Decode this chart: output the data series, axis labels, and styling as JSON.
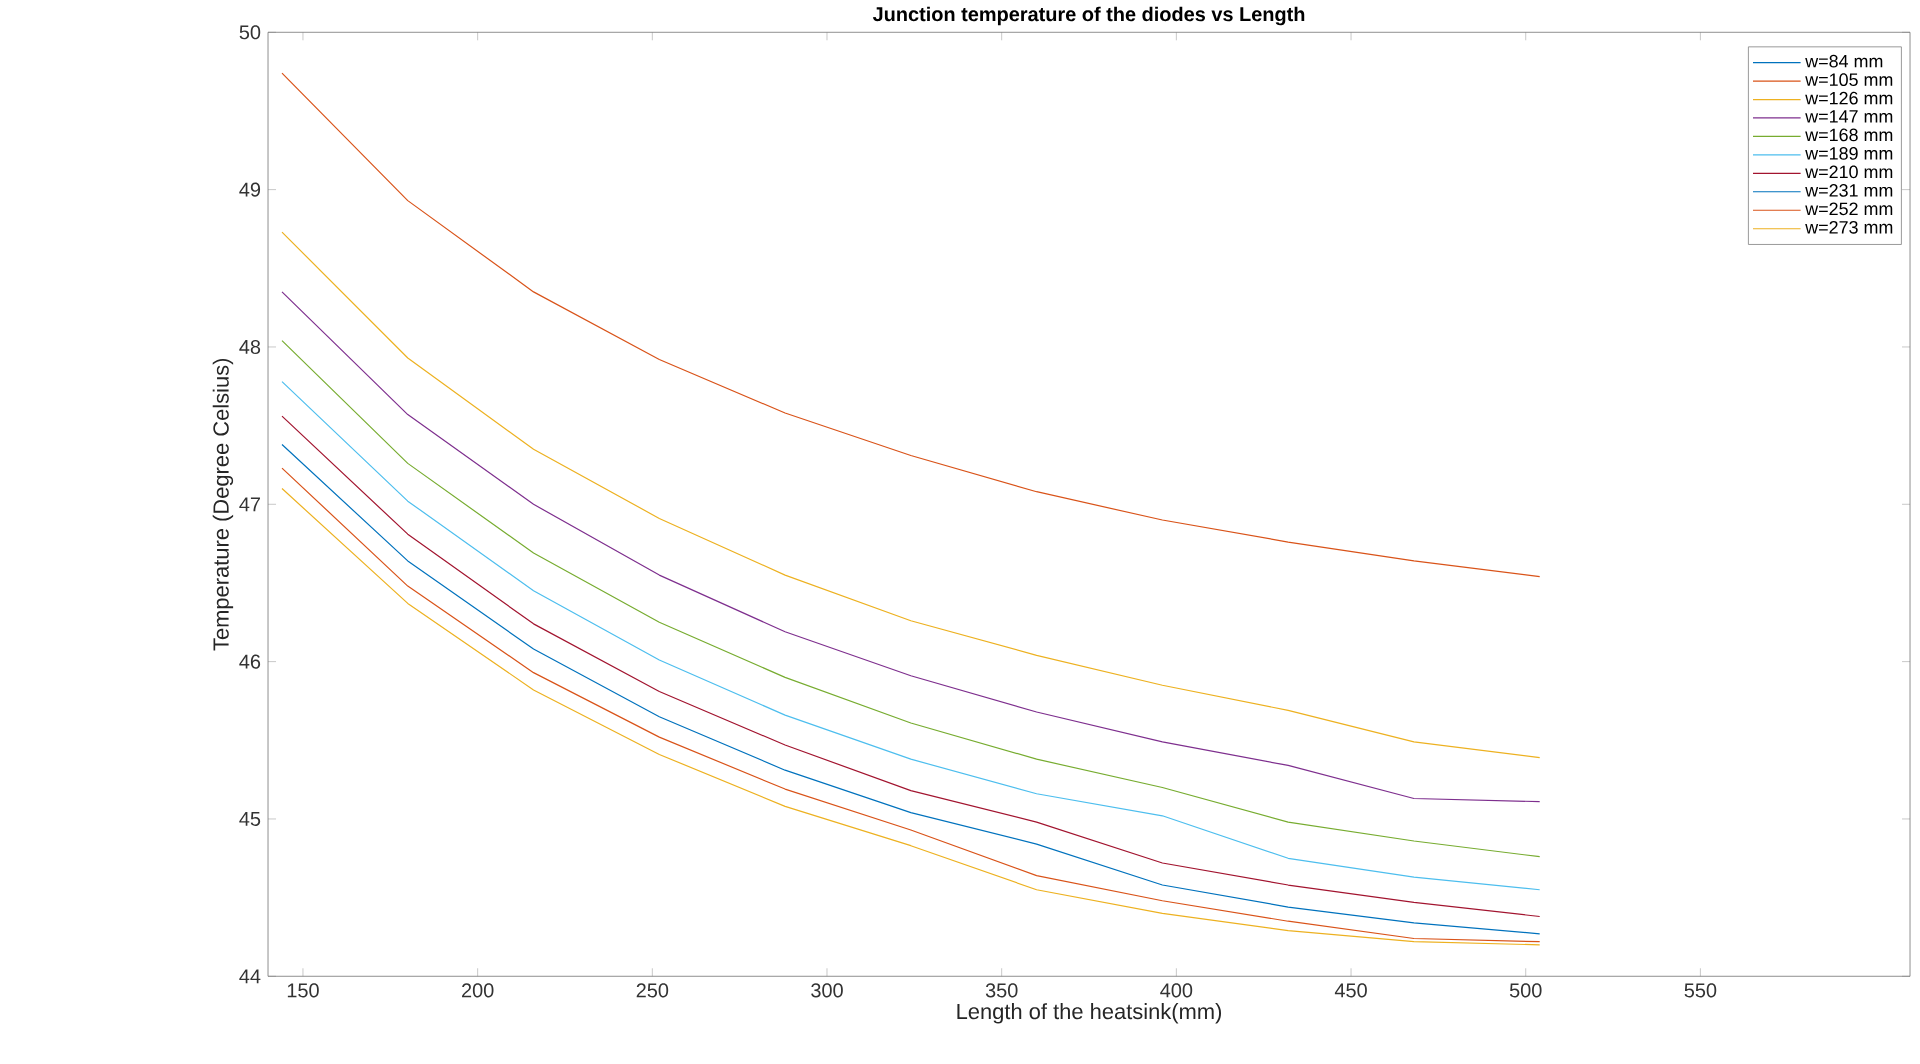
{
  "chart_data": {
    "type": "line",
    "title": "Junction temperature of the diodes vs Length",
    "xlabel": "Length of the heatsink(mm)",
    "ylabel": "Temperature (Degree Celsius)",
    "x": [
      144,
      180,
      216,
      252,
      288,
      324,
      360,
      396,
      432,
      468,
      504
    ],
    "xlim": [
      140,
      610
    ],
    "xticks": [
      150,
      200,
      250,
      300,
      350,
      400,
      450,
      500,
      550
    ],
    "ylim": [
      44,
      50
    ],
    "yticks": [
      44,
      45,
      46,
      47,
      48,
      49,
      50
    ],
    "legend": "top right",
    "grid": false,
    "marker": "none",
    "line_style": "solid",
    "series": [
      {
        "name": "w=84 mm",
        "color": "#0072bd",
        "values": [
          null,
          null,
          null,
          null,
          null,
          null,
          null,
          null,
          null,
          null,
          null
        ]
      },
      {
        "name": "w=105 mm",
        "color": "#d95319",
        "values": [
          49.74,
          48.93,
          48.35,
          47.92,
          47.58,
          47.31,
          47.08,
          46.9,
          46.76,
          46.64,
          46.54
        ]
      },
      {
        "name": "w=126 mm",
        "color": "#edb120",
        "values": [
          48.73,
          47.93,
          47.35,
          46.91,
          46.55,
          46.26,
          46.04,
          45.85,
          45.69,
          45.49,
          45.39
        ]
      },
      {
        "name": "w=147 mm",
        "color": "#7e2f8e",
        "values": [
          48.35,
          47.57,
          47.0,
          46.55,
          46.19,
          45.91,
          45.68,
          45.49,
          45.34,
          45.13,
          45.11
        ]
      },
      {
        "name": "w=168 mm",
        "color": "#77ac30",
        "values": [
          48.04,
          47.26,
          46.69,
          46.25,
          45.9,
          45.61,
          45.38,
          45.2,
          44.98,
          44.86,
          44.76
        ]
      },
      {
        "name": "w=189 mm",
        "color": "#4dbeee",
        "values": [
          47.78,
          47.02,
          46.45,
          46.01,
          45.66,
          45.38,
          45.16,
          45.02,
          44.75,
          44.63,
          44.55
        ]
      },
      {
        "name": "w=210 mm",
        "color": "#a2142f",
        "values": [
          47.56,
          46.81,
          46.24,
          45.81,
          45.47,
          45.18,
          44.98,
          44.72,
          44.58,
          44.47,
          44.38
        ]
      },
      {
        "name": "w=231 mm",
        "color": "#0072bd",
        "values": [
          47.38,
          46.64,
          46.08,
          45.65,
          45.31,
          45.04,
          44.84,
          44.58,
          44.44,
          44.34,
          44.27
        ]
      },
      {
        "name": "w=252 mm",
        "color": "#d95319",
        "values": [
          47.23,
          46.48,
          45.93,
          45.52,
          45.19,
          44.93,
          44.64,
          44.48,
          44.35,
          44.24,
          44.22
        ]
      },
      {
        "name": "w=273 mm",
        "color": "#edb120",
        "values": [
          47.1,
          46.37,
          45.82,
          45.41,
          45.08,
          44.83,
          44.55,
          44.4,
          44.29,
          44.22,
          44.2
        ]
      }
    ]
  }
}
